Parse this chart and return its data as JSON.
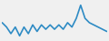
{
  "values": [
    0,
    -2,
    -5,
    -2,
    -6,
    -2,
    -5,
    -1,
    -4,
    -1,
    -3,
    -1,
    -3,
    -1,
    -3,
    0,
    -2,
    2,
    8,
    2,
    0,
    -1,
    -2,
    -3,
    -4
  ],
  "line_color": "#2e8bc4",
  "linewidth": 1.2,
  "background_color": "#f0f0f0",
  "ylim": [
    -8,
    10
  ]
}
